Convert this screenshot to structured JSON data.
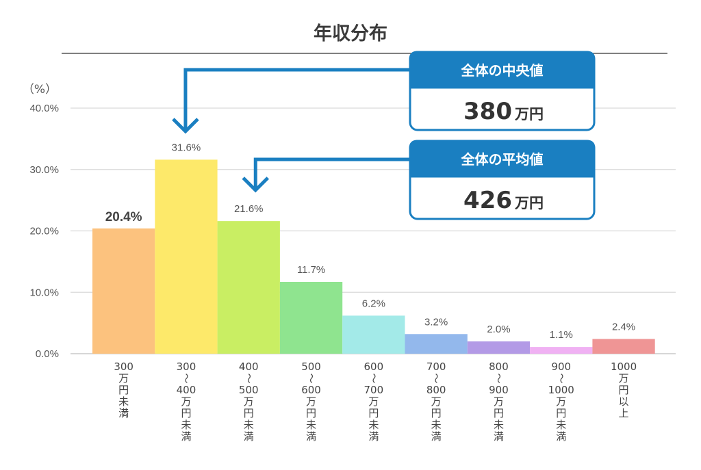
{
  "chart_data": {
    "type": "bar",
    "title": "年収分布",
    "ylabel": "（%）",
    "ylim": [
      0,
      40
    ],
    "yticks": [
      "0.0%",
      "10.0%",
      "20.0%",
      "30.0%",
      "40.0%"
    ],
    "grid": true,
    "categories": [
      [
        "300",
        "万",
        "円",
        "未",
        "満"
      ],
      [
        "300",
        "〜",
        "400",
        "万",
        "円",
        "未",
        "満"
      ],
      [
        "400",
        "〜",
        "500",
        "万",
        "円",
        "未",
        "満"
      ],
      [
        "500",
        "〜",
        "600",
        "万",
        "円",
        "未",
        "満"
      ],
      [
        "600",
        "〜",
        "700",
        "万",
        "円",
        "未",
        "満"
      ],
      [
        "700",
        "〜",
        "800",
        "万",
        "円",
        "未",
        "満"
      ],
      [
        "800",
        "〜",
        "900",
        "万",
        "円",
        "未",
        "満"
      ],
      [
        "900",
        "〜",
        "1000",
        "万",
        "円",
        "未",
        "満"
      ],
      [
        "1000",
        "万",
        "円",
        "以",
        "上"
      ]
    ],
    "values": [
      20.4,
      31.6,
      21.6,
      11.7,
      6.2,
      3.2,
      2.0,
      1.1,
      2.4
    ],
    "value_labels": [
      "20.4%",
      "31.6%",
      "21.6%",
      "11.7%",
      "6.2%",
      "3.2%",
      "2.0%",
      "1.1%",
      "2.4%"
    ],
    "colors": [
      "#fcc27e",
      "#fde96a",
      "#c9ee63",
      "#8fe48f",
      "#a3eae8",
      "#93b8ec",
      "#b39ae6",
      "#f0b1f3",
      "#ef9595"
    ],
    "annotations": [
      {
        "label": "全体の中央値",
        "value": "380",
        "unit": "万円",
        "points_to_category": 1
      },
      {
        "label": "全体の平均値",
        "value": "426",
        "unit": "万円",
        "points_to_category": 2
      }
    ],
    "accent_color": "#1a7fc1"
  }
}
